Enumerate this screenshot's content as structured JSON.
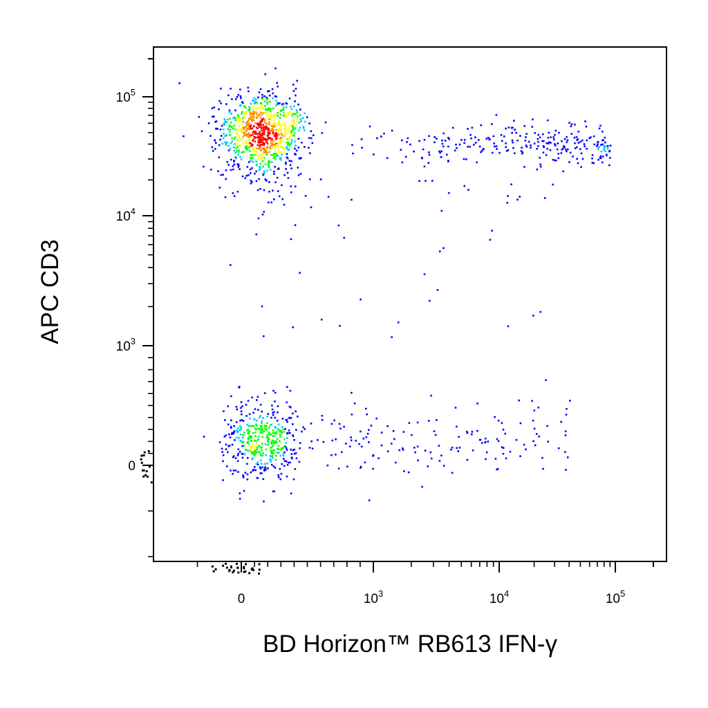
{
  "chart_data": {
    "type": "scatter",
    "subtype": "flow-cytometry-density-dot-plot",
    "title": "",
    "xlabel": "BD Horizon™ RB613 IFN-γ",
    "ylabel": "APC CD3",
    "x_scale": "biexponential",
    "y_scale": "biexponential",
    "xlim": [
      -200,
      200000
    ],
    "ylim": [
      -200,
      200000
    ],
    "x_ticks": [
      {
        "value": 0,
        "label": "0",
        "base": "",
        "exp": ""
      },
      {
        "value": 1000,
        "label": "10^3",
        "base": "10",
        "exp": "3"
      },
      {
        "value": 10000,
        "label": "10^4",
        "base": "10",
        "exp": "4"
      },
      {
        "value": 100000,
        "label": "10^5",
        "base": "10",
        "exp": "5"
      }
    ],
    "y_ticks": [
      {
        "value": 0,
        "label": "0",
        "base": "",
        "exp": ""
      },
      {
        "value": 1000,
        "label": "10^3",
        "base": "10",
        "exp": "3"
      },
      {
        "value": 10000,
        "label": "10^4",
        "base": "10",
        "exp": "4"
      },
      {
        "value": 100000,
        "label": "10^5",
        "base": "10",
        "exp": "5"
      }
    ],
    "grid": false,
    "legend": "none",
    "density_colors": [
      "#0000ff",
      "#00c8ff",
      "#00ff00",
      "#ffff00",
      "#ff8c00",
      "#ff0000"
    ],
    "populations": [
      {
        "x_center": 160,
        "y_center": 55000,
        "count": 900,
        "peak_density": "high"
      },
      {
        "x_center": 150,
        "y_center": 60,
        "count": 420,
        "peak_density": "medium"
      },
      {
        "x_range": [
          700,
          90000
        ],
        "y_center": 40000,
        "count": 260,
        "peak_density": "low"
      },
      {
        "x_range": [
          600,
          40000
        ],
        "y_center": 150,
        "count": 150,
        "peak_density": "low"
      },
      {
        "x_range": [
          100,
          30000
        ],
        "y_range": [
          1000,
          20000
        ],
        "count": 40,
        "peak_density": "low"
      }
    ]
  }
}
